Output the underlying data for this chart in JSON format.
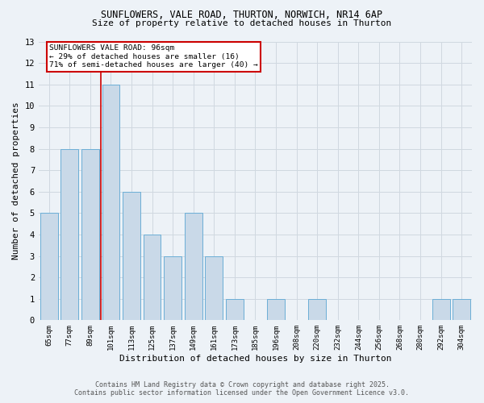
{
  "title1": "SUNFLOWERS, VALE ROAD, THURTON, NORWICH, NR14 6AP",
  "title2": "Size of property relative to detached houses in Thurton",
  "xlabel": "Distribution of detached houses by size in Thurton",
  "ylabel": "Number of detached properties",
  "categories": [
    "65sqm",
    "77sqm",
    "89sqm",
    "101sqm",
    "113sqm",
    "125sqm",
    "137sqm",
    "149sqm",
    "161sqm",
    "173sqm",
    "185sqm",
    "196sqm",
    "208sqm",
    "220sqm",
    "232sqm",
    "244sqm",
    "256sqm",
    "268sqm",
    "280sqm",
    "292sqm",
    "304sqm"
  ],
  "values": [
    5,
    8,
    8,
    11,
    6,
    4,
    3,
    5,
    3,
    1,
    0,
    1,
    0,
    1,
    0,
    0,
    0,
    0,
    0,
    1,
    1
  ],
  "bar_color": "#c9d9e8",
  "bar_edge_color": "#6baed6",
  "annotation_title": "SUNFLOWERS VALE ROAD: 96sqm",
  "annotation_line1": "← 29% of detached houses are smaller (16)",
  "annotation_line2": "71% of semi-detached houses are larger (40) →",
  "annotation_box_color": "#ffffff",
  "annotation_box_edge_color": "#cc0000",
  "grid_color": "#d0d8e0",
  "background_color": "#edf2f7",
  "footer1": "Contains HM Land Registry data © Crown copyright and database right 2025.",
  "footer2": "Contains public sector information licensed under the Open Government Licence v3.0.",
  "ylim": [
    0,
    13
  ],
  "yticks": [
    0,
    1,
    2,
    3,
    4,
    5,
    6,
    7,
    8,
    9,
    10,
    11,
    12,
    13
  ],
  "red_line_color": "#cc0000",
  "red_line_x": 2.5
}
